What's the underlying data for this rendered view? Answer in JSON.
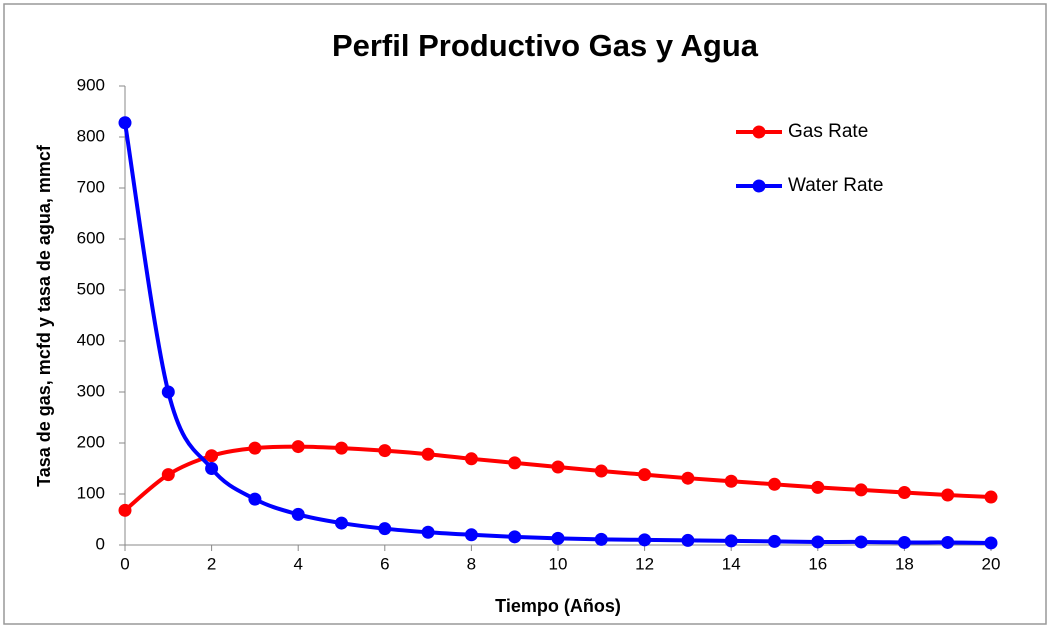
{
  "chart_data": {
    "type": "line",
    "title": "Perfil Productivo Gas y Agua",
    "x_label": "Tiempo (Años)",
    "y_label": "Tasa de gas, mcfd y tasa de agua, mmcf",
    "x": [
      0,
      1,
      2,
      3,
      4,
      5,
      6,
      7,
      8,
      9,
      10,
      11,
      12,
      13,
      14,
      15,
      16,
      17,
      18,
      19,
      20
    ],
    "series": [
      {
        "name": "Gas Rate",
        "color": "#ff0000",
        "values": [
          68,
          138,
          175,
          190,
          193,
          190,
          185,
          178,
          169,
          161,
          153,
          145,
          138,
          131,
          125,
          119,
          113,
          108,
          103,
          98,
          94
        ]
      },
      {
        "name": "Water Rate",
        "color": "#0000ff",
        "values": [
          828,
          300,
          150,
          90,
          60,
          43,
          32,
          25,
          20,
          16,
          13,
          11,
          10,
          9,
          8,
          7,
          6,
          6,
          5,
          5,
          4
        ]
      }
    ],
    "xlim": [
      0,
      20
    ],
    "xticks": [
      0,
      2,
      4,
      6,
      8,
      10,
      12,
      14,
      16,
      18,
      20
    ],
    "ylim": [
      0,
      900
    ],
    "yticks": [
      0,
      100,
      200,
      300,
      400,
      500,
      600,
      700,
      800,
      900
    ],
    "grid": false,
    "legend": "upper right"
  }
}
